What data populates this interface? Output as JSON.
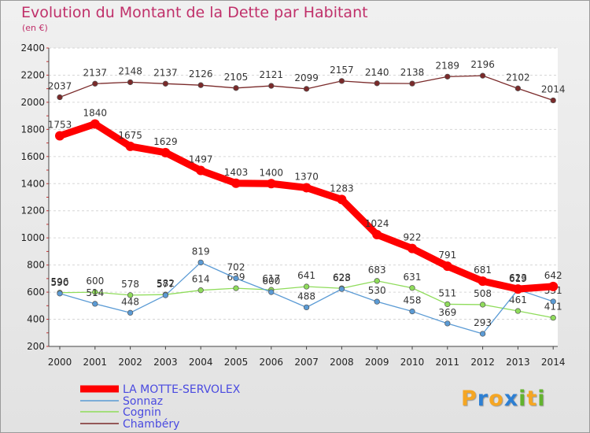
{
  "title": "Evolution du Montant de la Dette par Habitant",
  "subtitle": "(en €)",
  "logo": {
    "letters": [
      "P",
      "r",
      "o",
      "x",
      "i",
      "t",
      "i"
    ],
    "colors": [
      "#f5a623",
      "#2d7fd3",
      "#f5a623",
      "#2d7fd3",
      "#62b32e",
      "#f5a623",
      "#62b32e"
    ]
  },
  "chart_data": {
    "type": "line",
    "x": [
      "2000",
      "2001",
      "2002",
      "2003",
      "2004",
      "2005",
      "2006",
      "2007",
      "2008",
      "2009",
      "2010",
      "2011",
      "2012",
      "2013",
      "2014"
    ],
    "ylim": [
      200,
      2400
    ],
    "yticks": [
      "200",
      "400",
      "600",
      "800",
      "1000",
      "1200",
      "1400",
      "1600",
      "1800",
      "2000",
      "2200",
      "2400"
    ],
    "grid": "horizontal",
    "legend_position": "bottom-left",
    "series": [
      {
        "name": "Chambéry",
        "color": "#7a2a2a",
        "values": [
          2037,
          2137,
          2148,
          2137,
          2126,
          2105,
          2121,
          2099,
          2157,
          2140,
          2138,
          2189,
          2196,
          2102,
          2014
        ],
        "labels": [
          "2037",
          "2137",
          "2148",
          "2137",
          "2126",
          "2105",
          "2121",
          "2099",
          "2157",
          "2140",
          "2138",
          "2189",
          "2196",
          "2102",
          "2014"
        ]
      },
      {
        "name": "Cognin",
        "color": "#8fdc5b",
        "values": [
          596,
          600,
          578,
          582,
          614,
          629,
          617,
          641,
          628,
          683,
          631,
          511,
          508,
          461,
          411
        ],
        "labels": [
          "596",
          "600",
          "578",
          "582",
          "614",
          "629",
          "617",
          "641",
          "628",
          "683",
          "631",
          "511",
          "508",
          "461",
          "411"
        ]
      },
      {
        "name": "Sonnaz",
        "color": "#5b9bd5",
        "values": [
          590,
          514,
          448,
          577,
          819,
          702,
          600,
          488,
          623,
          530,
          458,
          369,
          293,
          619,
          531
        ],
        "labels": [
          "590",
          "514",
          "448",
          "577",
          "819",
          "702",
          "600",
          "488",
          "623",
          "530",
          "458",
          "369",
          "293",
          "619",
          "531"
        ]
      },
      {
        "name": "LA MOTTE-SERVOLEX",
        "color": "#ff0000",
        "values": [
          1753,
          1840,
          1675,
          1629,
          1497,
          1403,
          1400,
          1370,
          1283,
          1024,
          922,
          791,
          681,
          623,
          642
        ],
        "labels": [
          "1753",
          "1840",
          "1675",
          "1629",
          "1497",
          "1403",
          "1400",
          "1370",
          "1283",
          "1024",
          "922",
          "791",
          "681",
          "623",
          "642"
        ]
      }
    ],
    "legend": [
      "LA MOTTE-SERVOLEX",
      "Sonnaz",
      "Cognin",
      "Chambéry"
    ]
  }
}
